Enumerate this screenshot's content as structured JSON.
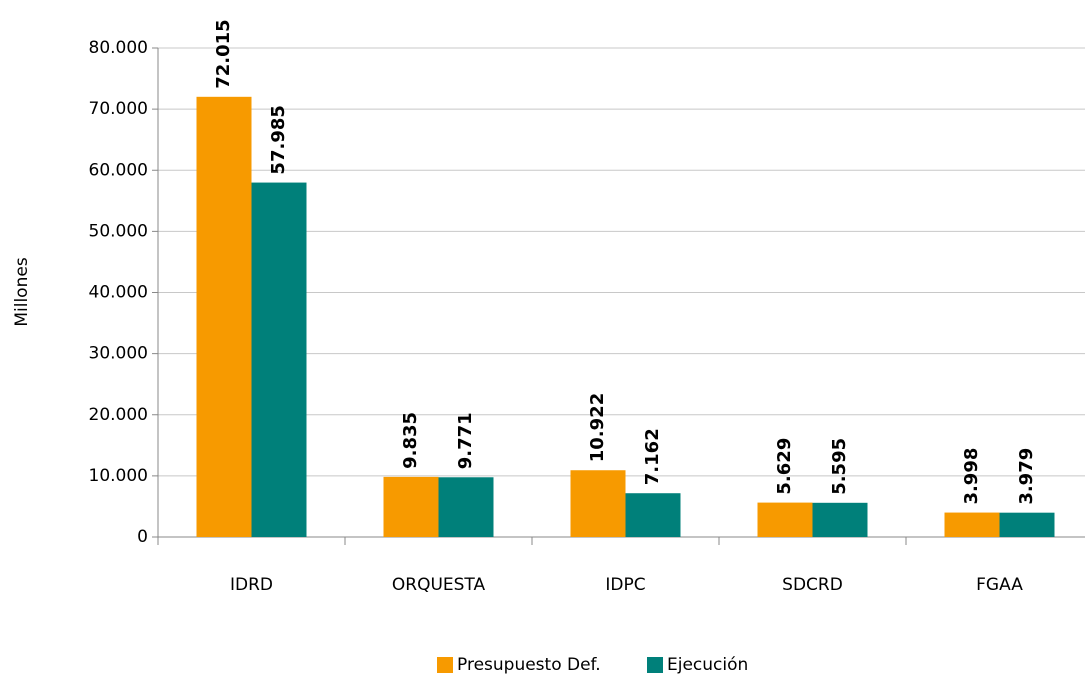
{
  "chart_data": {
    "type": "bar",
    "y_label": "Millones",
    "categories": [
      "IDRD",
      "ORQUESTA",
      "IDPC",
      "SDCRD",
      "FGAA"
    ],
    "series": [
      {
        "name": "Presupuesto Def.",
        "color": "#f79a00",
        "values": [
          72015,
          9835,
          10922,
          5629,
          3998
        ],
        "value_labels": [
          "72.015",
          "9.835",
          "10.922",
          "5.629",
          "3.998"
        ]
      },
      {
        "name": "Ejecución",
        "color": "#00807a",
        "values": [
          57985,
          9771,
          7162,
          5595,
          3979
        ],
        "value_labels": [
          "57.985",
          "9.771",
          "7.162",
          "5.595",
          "3.979"
        ]
      }
    ],
    "ylim": [
      0,
      80000
    ],
    "yticks": [
      0,
      {
        "value": 10000,
        "label": "10.000"
      },
      {
        "value": 20000,
        "label": "20.000"
      },
      {
        "value": 30000,
        "label": "30.000"
      },
      {
        "value": 40000,
        "label": "40.000"
      },
      {
        "value": 50000,
        "label": "50.000"
      },
      {
        "value": 60000,
        "label": "60.000"
      },
      {
        "value": 70000,
        "label": "70.000"
      },
      {
        "value": 80000,
        "label": "80.000"
      }
    ],
    "grid": true,
    "legend": "bottom"
  }
}
